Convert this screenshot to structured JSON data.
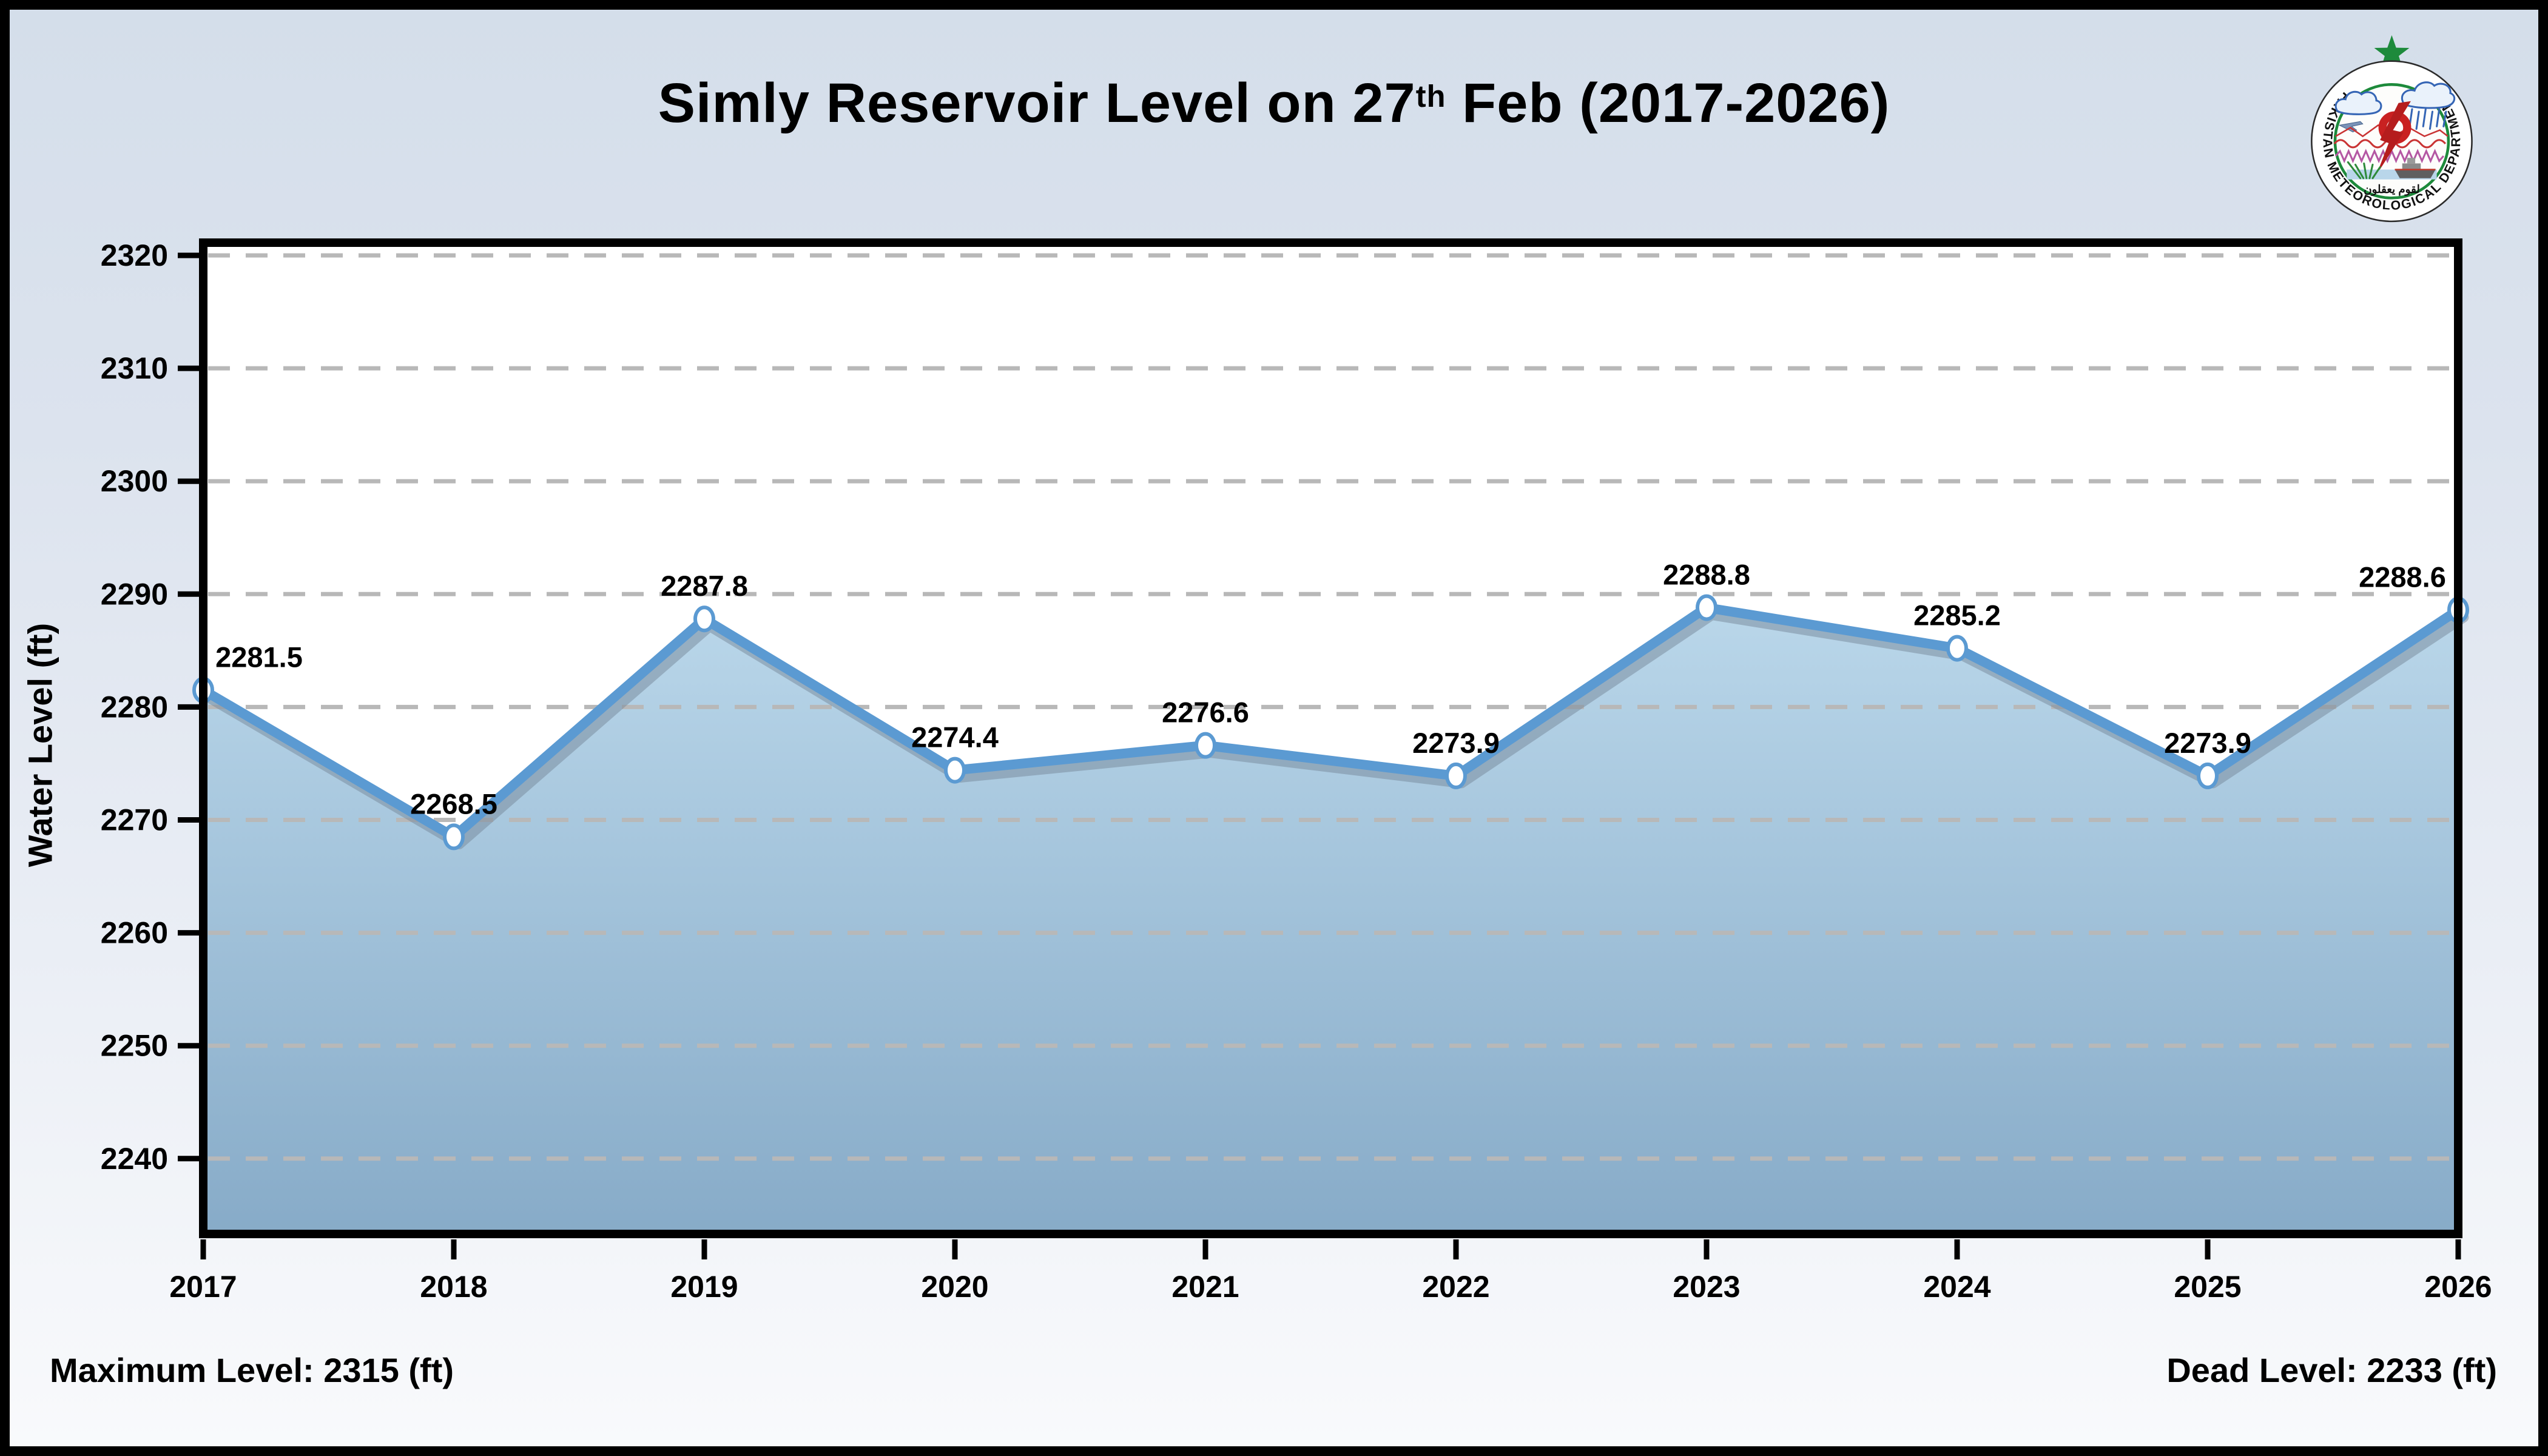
{
  "title": {
    "prefix": "Simly Reservoir Level on 27",
    "superscript": "th",
    "suffix": " Feb (2017-2026)"
  },
  "logo": {
    "ring_text": "PAKISTAN METEOROLOGICAL DEPARTMENT",
    "arabic_text": "لقوم يعقلون"
  },
  "chart_data": {
    "type": "area",
    "title": "Simly Reservoir Level on 27th Feb (2017-2026)",
    "categories": [
      "2017",
      "2018",
      "2019",
      "2020",
      "2021",
      "2022",
      "2023",
      "2024",
      "2025",
      "2026"
    ],
    "values": [
      2281.5,
      2268.5,
      2287.8,
      2274.4,
      2276.6,
      2273.9,
      2288.8,
      2285.2,
      2273.9,
      2288.6
    ],
    "xlabel": "",
    "ylabel": "Water Level (ft)",
    "ylim": [
      2233,
      2321
    ],
    "yticks": [
      2240,
      2250,
      2260,
      2270,
      2280,
      2290,
      2300,
      2310,
      2320
    ],
    "grid": true,
    "legend": false,
    "annotations": {
      "max_level": "Maximum Level: 2315 (ft)",
      "dead_level": "Dead Level: 2233 (ft)"
    }
  },
  "colors": {
    "line": "#5b9ad2",
    "line_shadow": "rgba(118,136,154,0.5)",
    "area_top": "#bad7ea",
    "area_bottom": "#87abc8",
    "grid": "#b8b8b8",
    "marker_fill": "#ffffff",
    "plot_bg": "#ffffff",
    "axis": "#000000",
    "logo_green": "#1d8a3b",
    "logo_red": "#c92121",
    "logo_blue": "#3565b5",
    "logo_magenta": "#b457a3"
  }
}
